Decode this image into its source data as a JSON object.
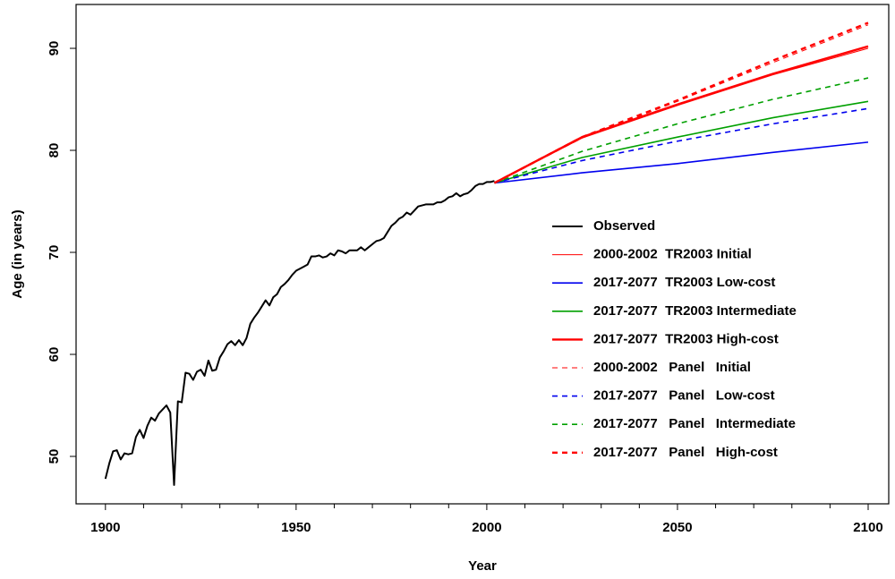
{
  "chart_data": {
    "type": "line",
    "xlabel": "Year",
    "ylabel": "Age (in years)",
    "xlim": [
      1892.3,
      2105.4
    ],
    "ylim": [
      45.35,
      94.3
    ],
    "xticks": [
      1900,
      1950,
      2000,
      2050,
      2100
    ],
    "xminorticks": [
      1910,
      1920,
      1930,
      1940,
      1960,
      1970,
      1980,
      1990,
      2010,
      2020,
      2030,
      2040,
      2060,
      2070,
      2080,
      2090
    ],
    "yticks": [
      50,
      60,
      70,
      80,
      90
    ],
    "legend": "right",
    "series": [
      {
        "name": "Observed",
        "color": "#000000",
        "width": 2,
        "dash": false,
        "x": [
          1900,
          1901,
          1902,
          1903,
          1904,
          1905,
          1906,
          1907,
          1908,
          1909,
          1910,
          1911,
          1912,
          1913,
          1914,
          1915,
          1916,
          1917,
          1918,
          1919,
          1920,
          1921,
          1922,
          1923,
          1924,
          1925,
          1926,
          1927,
          1928,
          1929,
          1930,
          1931,
          1932,
          1933,
          1934,
          1935,
          1936,
          1937,
          1938,
          1939,
          1940,
          1941,
          1942,
          1943,
          1944,
          1945,
          1946,
          1947,
          1948,
          1949,
          1950,
          1951,
          1952,
          1953,
          1954,
          1955,
          1956,
          1957,
          1958,
          1959,
          1960,
          1961,
          1962,
          1963,
          1964,
          1965,
          1966,
          1967,
          1968,
          1969,
          1970,
          1971,
          1972,
          1973,
          1974,
          1975,
          1976,
          1977,
          1978,
          1979,
          1980,
          1981,
          1982,
          1983,
          1984,
          1985,
          1986,
          1987,
          1988,
          1989,
          1990,
          1991,
          1992,
          1993,
          1994,
          1995,
          1996,
          1997,
          1998,
          1999,
          2000,
          2001,
          2002
        ],
        "values": [
          47.8,
          49.3,
          50.5,
          50.6,
          49.7,
          50.3,
          50.2,
          50.3,
          51.9,
          52.6,
          51.8,
          53.0,
          53.8,
          53.5,
          54.2,
          54.6,
          55.0,
          54.3,
          47.2,
          55.4,
          55.3,
          58.2,
          58.1,
          57.5,
          58.3,
          58.5,
          57.9,
          59.4,
          58.4,
          58.5,
          59.7,
          60.3,
          61.0,
          61.3,
          60.9,
          61.4,
          60.9,
          61.6,
          63.0,
          63.6,
          64.1,
          64.7,
          65.3,
          64.8,
          65.6,
          65.9,
          66.6,
          66.9,
          67.3,
          67.8,
          68.2,
          68.4,
          68.6,
          68.8,
          69.6,
          69.6,
          69.7,
          69.5,
          69.6,
          69.9,
          69.7,
          70.2,
          70.1,
          69.9,
          70.2,
          70.2,
          70.2,
          70.5,
          70.2,
          70.5,
          70.8,
          71.1,
          71.2,
          71.4,
          72.0,
          72.6,
          72.9,
          73.3,
          73.5,
          73.9,
          73.7,
          74.1,
          74.5,
          74.6,
          74.7,
          74.7,
          74.7,
          74.9,
          74.9,
          75.1,
          75.4,
          75.5,
          75.8,
          75.5,
          75.7,
          75.8,
          76.1,
          76.5,
          76.7,
          76.7,
          76.9,
          76.9,
          77.0
        ]
      },
      {
        "name": "2000-2002  TR2003 Initial",
        "color": "#ff0000",
        "width": 1,
        "dash": false,
        "x": [
          2002,
          2025,
          2050,
          2075,
          2100
        ],
        "values": [
          76.8,
          81.2,
          84.4,
          87.4,
          90.0
        ]
      },
      {
        "name": "2017-2077  TR2003 Low-cost",
        "color": "#0000ee",
        "width": 1.6,
        "dash": false,
        "x": [
          2002,
          2025,
          2050,
          2075,
          2100
        ],
        "values": [
          76.8,
          77.8,
          78.7,
          79.8,
          80.8
        ]
      },
      {
        "name": "2017-2077  TR2003 Intermediate",
        "color": "#00a000",
        "width": 1.6,
        "dash": false,
        "x": [
          2002,
          2025,
          2050,
          2075,
          2100
        ],
        "values": [
          76.8,
          79.3,
          81.3,
          83.2,
          84.8
        ]
      },
      {
        "name": "2017-2077  TR2003 High-cost",
        "color": "#ff0000",
        "width": 2.4,
        "dash": false,
        "x": [
          2002,
          2025,
          2050,
          2075,
          2100
        ],
        "values": [
          76.8,
          81.3,
          84.5,
          87.5,
          90.2
        ]
      },
      {
        "name": "2000-2002   Panel   Initial",
        "color": "#ff0000",
        "width": 1,
        "dash": true,
        "x": [
          2002,
          2025,
          2050,
          2075,
          2100
        ],
        "values": [
          76.8,
          81.2,
          84.8,
          88.6,
          92.3
        ]
      },
      {
        "name": "2017-2077   Panel   Low-cost",
        "color": "#0000ee",
        "width": 1.6,
        "dash": true,
        "x": [
          2002,
          2025,
          2050,
          2075,
          2100
        ],
        "values": [
          76.8,
          79.0,
          80.9,
          82.6,
          84.1
        ]
      },
      {
        "name": "2017-2077   Panel   Intermediate",
        "color": "#00a000",
        "width": 1.6,
        "dash": true,
        "x": [
          2002,
          2025,
          2050,
          2075,
          2100
        ],
        "values": [
          76.8,
          79.9,
          82.6,
          85.0,
          87.1
        ]
      },
      {
        "name": "2017-2077   Panel   High-cost",
        "color": "#ff0000",
        "width": 2.4,
        "dash": true,
        "x": [
          2002,
          2025,
          2050,
          2075,
          2100
        ],
        "values": [
          76.8,
          81.3,
          84.9,
          88.8,
          92.5
        ]
      }
    ]
  }
}
